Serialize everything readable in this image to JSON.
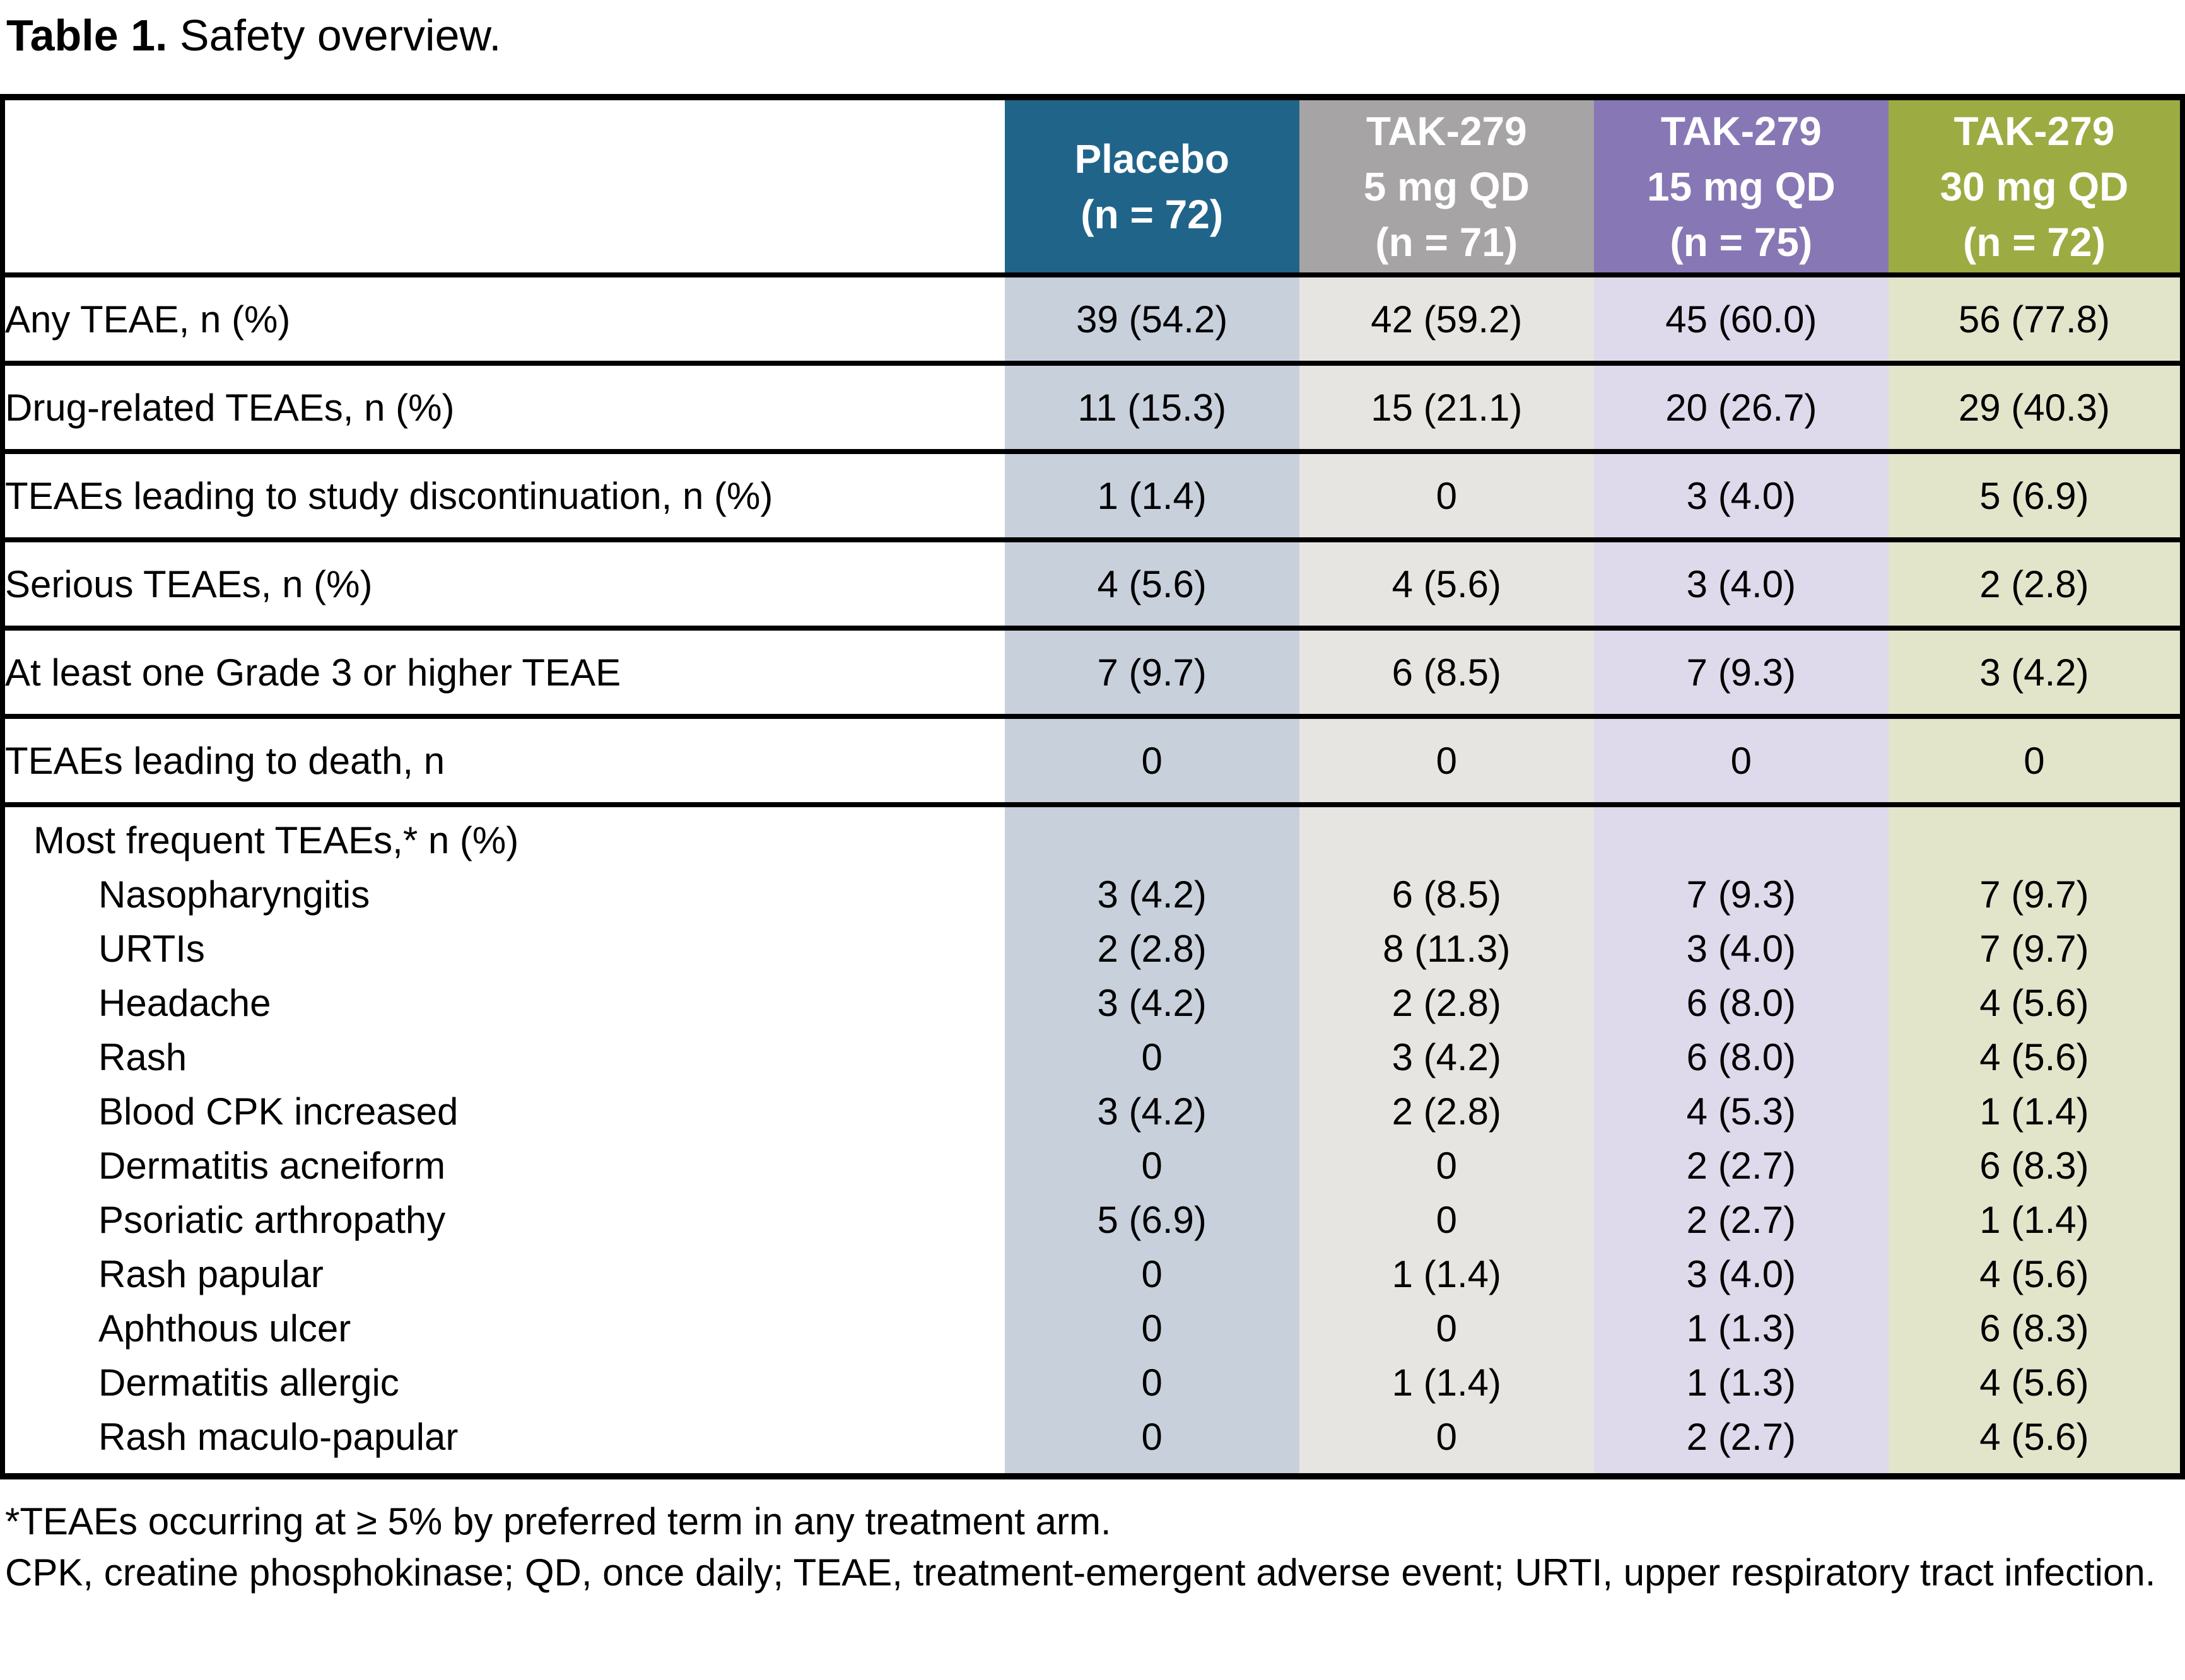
{
  "title": {
    "prefix": "Table 1.",
    "rest": " Safety overview."
  },
  "table": {
    "columns": [
      {
        "id": "placebo",
        "header_lines": [
          "Placebo",
          "(n = 72)"
        ],
        "header_bg": "#20648A",
        "body_bg": "#C8D0DC"
      },
      {
        "id": "tak279-5mg",
        "header_lines": [
          "TAK-279",
          "5 mg QD",
          "(n = 71)"
        ],
        "header_bg": "#A6A4A4",
        "body_bg": "#E6E5E1"
      },
      {
        "id": "tak279-15mg",
        "header_lines": [
          "TAK-279",
          "15 mg QD",
          "(n = 75)"
        ],
        "header_bg": "#8877B5",
        "body_bg": "#DED9EB"
      },
      {
        "id": "tak279-30mg",
        "header_lines": [
          "TAK-279",
          "30 mg QD",
          "(n = 72)"
        ],
        "header_bg": "#9CAC42",
        "body_bg": "#E2E5CA"
      }
    ],
    "rows": [
      {
        "label": "Any TEAE, n (%)",
        "values": [
          "39 (54.2)",
          "42 (59.2)",
          "45 (60.0)",
          "56 (77.8)"
        ]
      },
      {
        "label": "Drug-related TEAEs, n (%)",
        "values": [
          "11 (15.3)",
          "15 (21.1)",
          "20 (26.7)",
          "29 (40.3)"
        ]
      },
      {
        "label": "TEAEs leading to study discontinuation, n (%)",
        "values": [
          "1 (1.4)",
          "0",
          "3 (4.0)",
          "5 (6.9)"
        ]
      },
      {
        "label": "Serious TEAEs, n (%)",
        "values": [
          "4 (5.6)",
          "4 (5.6)",
          "3 (4.0)",
          "2 (2.8)"
        ]
      },
      {
        "label": "At least one Grade 3 or higher TEAE",
        "values": [
          "7 (9.7)",
          "6 (8.5)",
          "7 (9.3)",
          "3 (4.2)"
        ]
      },
      {
        "label": "TEAEs leading to death, n",
        "values": [
          "0",
          "0",
          "0",
          "0"
        ]
      }
    ],
    "group_row": {
      "label": "Most frequent TEAEs,* n (%)",
      "items": [
        {
          "label": "Nasopharyngitis",
          "values": [
            "3 (4.2)",
            "6 (8.5)",
            "7 (9.3)",
            "7 (9.7)"
          ]
        },
        {
          "label": "URTIs",
          "values": [
            "2 (2.8)",
            "8 (11.3)",
            "3 (4.0)",
            "7 (9.7)"
          ]
        },
        {
          "label": "Headache",
          "values": [
            "3 (4.2)",
            "2 (2.8)",
            "6 (8.0)",
            "4 (5.6)"
          ]
        },
        {
          "label": "Rash",
          "values": [
            "0",
            "3 (4.2)",
            "6 (8.0)",
            "4 (5.6)"
          ]
        },
        {
          "label": "Blood CPK increased",
          "values": [
            "3 (4.2)",
            "2 (2.8)",
            "4 (5.3)",
            "1 (1.4)"
          ]
        },
        {
          "label": "Dermatitis acneiform",
          "values": [
            "0",
            "0",
            "2 (2.7)",
            "6 (8.3)"
          ]
        },
        {
          "label": "Psoriatic arthropathy",
          "values": [
            "5 (6.9)",
            "0",
            "2 (2.7)",
            "1 (1.4)"
          ]
        },
        {
          "label": "Rash papular",
          "values": [
            "0",
            "1 (1.4)",
            "3 (4.0)",
            "4 (5.6)"
          ]
        },
        {
          "label": "Aphthous ulcer",
          "values": [
            "0",
            "0",
            "1 (1.3)",
            "6 (8.3)"
          ]
        },
        {
          "label": "Dermatitis allergic",
          "values": [
            "0",
            "1 (1.4)",
            "1 (1.3)",
            "4 (5.6)"
          ]
        },
        {
          "label": "Rash maculo-papular",
          "values": [
            "0",
            "0",
            "2 (2.7)",
            "4 (5.6)"
          ]
        }
      ]
    }
  },
  "footnotes": [
    "*TEAEs occurring at ≥ 5% by preferred term in any treatment arm.",
    "CPK, creatine phosphokinase; QD, once daily; TEAE, treatment-emergent adverse event; URTI, upper respiratory tract infection."
  ],
  "colors": {
    "border": "#000000",
    "header_text": "#ffffff",
    "body_text": "#000000",
    "placebo_header": "#20648A",
    "tak5_header": "#A6A4A4",
    "tak15_header": "#8877B5",
    "tak30_header": "#9CAC42",
    "placebo_body": "#C8D0DC",
    "tak5_body": "#E6E5E1",
    "tak15_body": "#DED9EB",
    "tak30_body": "#E2E5CA"
  }
}
